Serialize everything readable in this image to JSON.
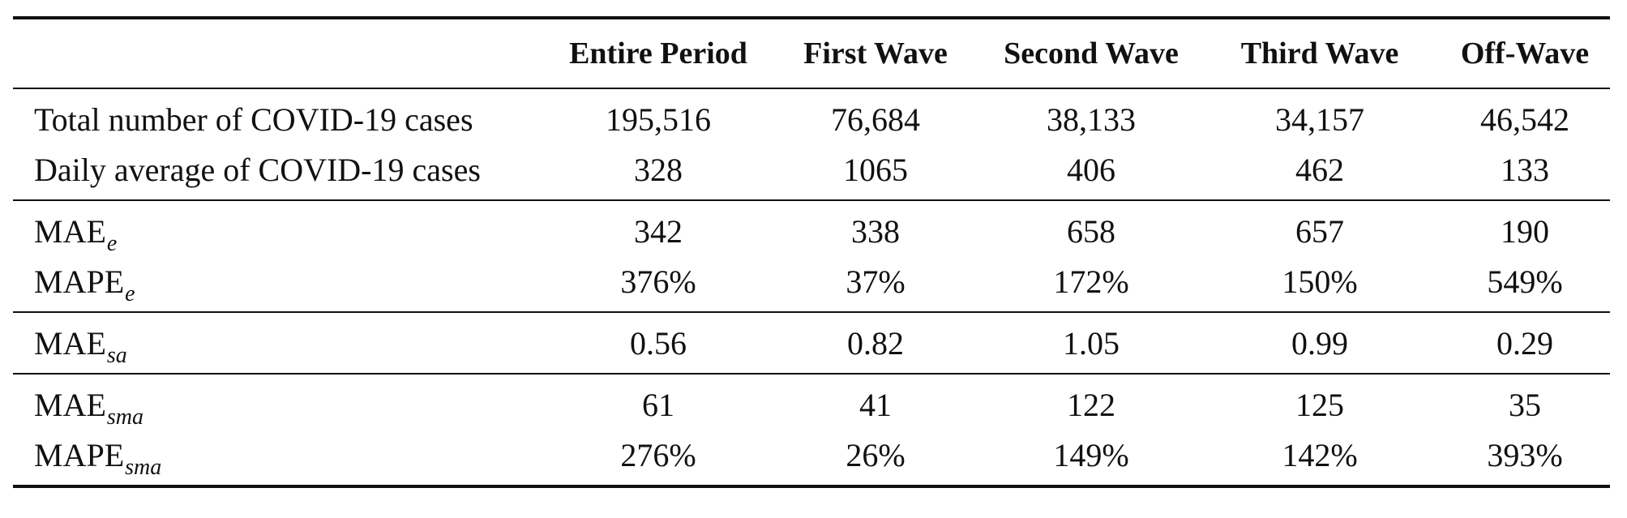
{
  "table": {
    "columns": [
      "Entire Period",
      "First Wave",
      "Second Wave",
      "Third Wave",
      "Off-Wave"
    ],
    "rows": [
      {
        "label": "Total number of COVID-19 cases",
        "sub": "",
        "values": [
          "195,516",
          "76,684",
          "38,133",
          "34,157",
          "46,542"
        ]
      },
      {
        "label": "Daily average of COVID-19 cases",
        "sub": "",
        "values": [
          "328",
          "1065",
          "406",
          "462",
          "133"
        ]
      },
      {
        "label": "MAE",
        "sub": "e",
        "values": [
          "342",
          "338",
          "658",
          "657",
          "190"
        ]
      },
      {
        "label": "MAPE",
        "sub": "e",
        "values": [
          "376%",
          "37%",
          "172%",
          "150%",
          "549%"
        ]
      },
      {
        "label": "MAE",
        "sub": "sa",
        "values": [
          "0.56",
          "0.82",
          "1.05",
          "0.99",
          "0.29"
        ]
      },
      {
        "label": "MAE",
        "sub": "sma",
        "values": [
          "61",
          "41",
          "122",
          "125",
          "35"
        ]
      },
      {
        "label": "MAPE",
        "sub": "sma",
        "values": [
          "276%",
          "26%",
          "149%",
          "142%",
          "393%"
        ]
      }
    ]
  }
}
